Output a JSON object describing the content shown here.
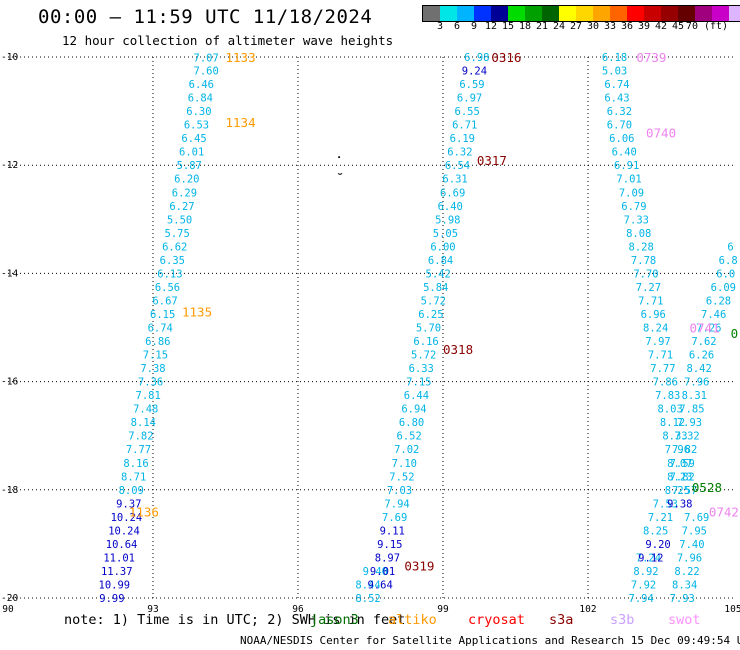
{
  "header": {
    "title": "00:00 – 11:59 UTC 11/18/2024",
    "subtitle": "12 hour collection of altimeter wave heights"
  },
  "colorbar": {
    "colors": [
      "#707070",
      "#00e6e6",
      "#00b4ff",
      "#0032ff",
      "#000096",
      "#00dc00",
      "#00a000",
      "#006400",
      "#ffff00",
      "#ffd700",
      "#ffa500",
      "#ff6400",
      "#ff0000",
      "#c80000",
      "#960000",
      "#640000",
      "#a0007d",
      "#c800c8",
      "#dcb4ff",
      "#ffa0ff",
      "#000000"
    ],
    "labels": [
      "3",
      "6",
      "9",
      "12",
      "15",
      "18",
      "21",
      "24",
      "27",
      "30",
      "33",
      "36",
      "39",
      "42",
      "45",
      "70 (ft)"
    ]
  },
  "map": {
    "x_ticks": [
      "90",
      "93",
      "96",
      "99",
      "102",
      "105"
    ],
    "y_ticks": [
      "-10",
      "-12",
      "-14",
      "-16",
      "-18",
      "-20"
    ],
    "lon_range": [
      90,
      105
    ],
    "lat_range": [
      -20,
      -10
    ],
    "tracks": [
      {
        "color_key": "cyan",
        "points": [
          [
            94.1,
            -10.01,
            "7.07"
          ],
          [
            94.1,
            -10.25,
            "7.60"
          ],
          [
            94.0,
            -10.5,
            "6.46"
          ],
          [
            93.98,
            -10.75,
            "6.84"
          ],
          [
            93.95,
            -11.0,
            "6.30"
          ],
          [
            93.9,
            -11.25,
            "6.53"
          ],
          [
            93.85,
            -11.5,
            "6.45"
          ],
          [
            93.8,
            -11.75,
            "6.01"
          ],
          [
            93.75,
            -12.0,
            "5.87"
          ],
          [
            93.7,
            -12.25,
            "6.20"
          ],
          [
            93.65,
            -12.5,
            "6.29"
          ],
          [
            93.6,
            -12.75,
            "6.27"
          ],
          [
            93.55,
            -13.0,
            "5.50"
          ],
          [
            93.5,
            -13.25,
            "5.75"
          ],
          [
            93.45,
            -13.5,
            "6.62"
          ],
          [
            93.4,
            -13.75,
            "6.35"
          ],
          [
            93.35,
            -14.0,
            "6.13"
          ],
          [
            93.3,
            -14.25,
            "6.56"
          ],
          [
            93.25,
            -14.5,
            "6.67"
          ],
          [
            93.2,
            -14.75,
            "6.15"
          ],
          [
            93.15,
            -15.0,
            "6.74"
          ],
          [
            93.1,
            -15.25,
            "6.86"
          ],
          [
            93.05,
            -15.5,
            "7.15"
          ],
          [
            93.0,
            -15.75,
            "7.38"
          ],
          [
            92.95,
            -16.0,
            "7.36"
          ],
          [
            92.9,
            -16.25,
            "7.81"
          ],
          [
            92.85,
            -16.5,
            "7.48"
          ],
          [
            92.8,
            -16.75,
            "8.14"
          ],
          [
            92.75,
            -17.0,
            "7.82"
          ],
          [
            92.7,
            -17.25,
            "7.77"
          ],
          [
            92.65,
            -17.5,
            "8.16"
          ],
          [
            92.6,
            -17.75,
            "8.71"
          ],
          [
            92.55,
            -18.0,
            "8.09"
          ]
        ]
      },
      {
        "color_key": "blue",
        "points": [
          [
            92.5,
            -18.25,
            "9.37"
          ],
          [
            92.45,
            -18.5,
            "10.24"
          ],
          [
            92.4,
            -18.75,
            "10.24"
          ],
          [
            92.35,
            -19.0,
            "10.64"
          ],
          [
            92.3,
            -19.25,
            "11.01"
          ],
          [
            92.25,
            -19.5,
            "11.37"
          ],
          [
            92.2,
            -19.75,
            "10.99"
          ],
          [
            92.15,
            -20.0,
            "9.99"
          ]
        ]
      },
      {
        "color_key": "cyan",
        "points": [
          [
            99.7,
            -10.0,
            "6.98"
          ],
          [
            99.6,
            -10.5,
            "6.59"
          ],
          [
            99.55,
            -10.75,
            "6.97"
          ],
          [
            99.5,
            -11.0,
            "6.55"
          ],
          [
            99.45,
            -11.25,
            "6.71"
          ],
          [
            99.4,
            -11.5,
            "6.19"
          ],
          [
            99.35,
            -11.75,
            "6.32"
          ],
          [
            99.3,
            -12.0,
            "6.54"
          ],
          [
            99.25,
            -12.25,
            "6.31"
          ],
          [
            99.2,
            -12.5,
            "6.69"
          ],
          [
            99.15,
            -12.75,
            "6.40"
          ],
          [
            99.1,
            -13.0,
            "5.98"
          ],
          [
            99.05,
            -13.25,
            "5.05"
          ],
          [
            99.0,
            -13.5,
            "6.00"
          ],
          [
            98.95,
            -13.75,
            "6.84"
          ],
          [
            98.9,
            -14.0,
            "5.42"
          ],
          [
            98.85,
            -14.25,
            "5.84"
          ],
          [
            98.8,
            -14.5,
            "5.72"
          ],
          [
            98.75,
            -14.75,
            "6.25"
          ],
          [
            98.7,
            -15.0,
            "5.70"
          ],
          [
            98.65,
            -15.25,
            "6.16"
          ],
          [
            98.6,
            -15.5,
            "5.72"
          ],
          [
            98.55,
            -15.75,
            "6.33"
          ],
          [
            98.5,
            -16.0,
            "7.15"
          ],
          [
            98.45,
            -16.25,
            "6.44"
          ],
          [
            98.4,
            -16.5,
            "6.94"
          ],
          [
            98.35,
            -16.75,
            "6.80"
          ],
          [
            98.3,
            -17.0,
            "6.52"
          ],
          [
            98.25,
            -17.25,
            "7.02"
          ],
          [
            98.2,
            -17.5,
            "7.10"
          ],
          [
            98.15,
            -17.75,
            "7.52"
          ],
          [
            98.1,
            -18.0,
            "7.03"
          ],
          [
            98.05,
            -18.25,
            "7.94"
          ],
          [
            98.0,
            -18.5,
            "7.69"
          ],
          [
            97.6,
            -19.5,
            "9.40"
          ],
          [
            97.45,
            -19.75,
            "8.44"
          ],
          [
            97.45,
            -20.0,
            "8.52"
          ]
        ]
      },
      {
        "color_key": "blue",
        "points": [
          [
            99.65,
            -10.25,
            "9.24"
          ],
          [
            97.95,
            -18.75,
            "9.11"
          ],
          [
            97.9,
            -19.0,
            "9.15"
          ],
          [
            97.85,
            -19.25,
            "8.97"
          ],
          [
            97.75,
            -19.5,
            "9.01"
          ],
          [
            97.7,
            -19.75,
            "9.64"
          ]
        ]
      },
      {
        "color_key": "cyan",
        "points": [
          [
            102.55,
            -10.0,
            "6.18"
          ],
          [
            102.55,
            -10.25,
            "5.03"
          ],
          [
            102.6,
            -10.5,
            "6.74"
          ],
          [
            102.6,
            -10.75,
            "6.43"
          ],
          [
            102.65,
            -11.0,
            "6.32"
          ],
          [
            102.65,
            -11.25,
            "6.70"
          ],
          [
            102.7,
            -11.5,
            "6.06"
          ],
          [
            102.75,
            -11.75,
            "6.40"
          ],
          [
            102.8,
            -12.0,
            "6.91"
          ],
          [
            102.85,
            -12.25,
            "7.01"
          ],
          [
            102.9,
            -12.5,
            "7.09"
          ],
          [
            102.95,
            -12.75,
            "6.79"
          ],
          [
            103.0,
            -13.0,
            "7.33"
          ],
          [
            103.05,
            -13.25,
            "8.08"
          ],
          [
            103.1,
            -13.5,
            "8.28"
          ],
          [
            103.15,
            -13.75,
            "7.78"
          ],
          [
            103.2,
            -14.0,
            "7.70"
          ],
          [
            103.25,
            -14.25,
            "7.27"
          ],
          [
            103.3,
            -14.5,
            "7.71"
          ],
          [
            103.35,
            -14.75,
            "6.96"
          ],
          [
            103.4,
            -15.0,
            "8.24"
          ],
          [
            103.45,
            -15.25,
            "7.97"
          ],
          [
            103.5,
            -15.5,
            "7.71"
          ],
          [
            103.55,
            -15.75,
            "7.77"
          ],
          [
            103.6,
            -16.0,
            "7.86"
          ],
          [
            103.65,
            -16.25,
            "7.83"
          ],
          [
            103.7,
            -16.5,
            "8.03"
          ],
          [
            103.75,
            -16.75,
            "8.12"
          ],
          [
            103.8,
            -17.0,
            "8.33"
          ],
          [
            103.85,
            -17.25,
            "7.96"
          ],
          [
            103.9,
            -17.5,
            "8.07"
          ],
          [
            103.95,
            -17.75,
            "7.82"
          ],
          [
            104.0,
            -18.0,
            "7.57"
          ],
          [
            103.6,
            -18.25,
            "7.53"
          ],
          [
            103.5,
            -18.5,
            "7.21"
          ],
          [
            103.4,
            -18.75,
            "8.25"
          ],
          [
            103.25,
            -19.25,
            "7.24"
          ],
          [
            103.2,
            -19.5,
            "8.92"
          ],
          [
            103.15,
            -19.75,
            "7.92"
          ],
          [
            103.1,
            -20.0,
            "7.94"
          ]
        ]
      },
      {
        "color_key": "blue",
        "points": [
          [
            103.9,
            -18.25,
            "9.38"
          ],
          [
            103.45,
            -19.0,
            "9.20"
          ],
          [
            103.3,
            -19.25,
            "9.12"
          ]
        ]
      },
      {
        "color_key": "cyan",
        "points": [
          [
            104.95,
            -13.5,
            "6"
          ],
          [
            104.9,
            -13.75,
            "6.8"
          ],
          [
            104.85,
            -14.0,
            "6.0"
          ],
          [
            104.8,
            -14.25,
            "6.09"
          ],
          [
            104.7,
            -14.5,
            "6.28"
          ],
          [
            104.6,
            -14.75,
            "7.46"
          ],
          [
            104.5,
            -15.0,
            "7.26"
          ],
          [
            104.4,
            -15.25,
            "7.62"
          ],
          [
            104.35,
            -15.5,
            "6.26"
          ],
          [
            104.3,
            -15.75,
            "8.42"
          ],
          [
            104.25,
            -16.0,
            "7.96"
          ],
          [
            104.2,
            -16.25,
            "8.31"
          ],
          [
            104.15,
            -16.5,
            "7.85"
          ],
          [
            104.1,
            -16.75,
            "7.93"
          ],
          [
            104.05,
            -17.0,
            "7.32"
          ],
          [
            104.0,
            -17.25,
            "7.82"
          ],
          [
            103.95,
            -17.5,
            "7.59"
          ],
          [
            103.9,
            -17.75,
            "8.23"
          ],
          [
            103.85,
            -18.0,
            "8.25"
          ],
          [
            104.25,
            -18.5,
            "7.69"
          ],
          [
            104.2,
            -18.75,
            "7.95"
          ],
          [
            104.15,
            -19.0,
            "7.40"
          ],
          [
            104.1,
            -19.25,
            "7.96"
          ],
          [
            104.05,
            -19.5,
            "8.22"
          ],
          [
            104.0,
            -19.75,
            "8.34"
          ],
          [
            103.95,
            -20.0,
            "7.93"
          ]
        ]
      }
    ],
    "pass_labels": [
      {
        "text": "1133",
        "lon": 94.5,
        "lat": -10.0,
        "color_key": "orange"
      },
      {
        "text": "1134",
        "lon": 94.5,
        "lat": -11.2,
        "color_key": "orange"
      },
      {
        "text": "1135",
        "lon": 93.6,
        "lat": -14.7,
        "color_key": "orange"
      },
      {
        "text": "1136",
        "lon": 92.5,
        "lat": -18.4,
        "color_key": "orange"
      },
      {
        "text": "0316",
        "lon": 100.0,
        "lat": -10.0,
        "color_key": "darkred"
      },
      {
        "text": "0317",
        "lon": 99.7,
        "lat": -11.9,
        "color_key": "darkred"
      },
      {
        "text": "0318",
        "lon": 99.0,
        "lat": -15.4,
        "color_key": "darkred"
      },
      {
        "text": "0319",
        "lon": 98.2,
        "lat": -19.4,
        "color_key": "darkred"
      },
      {
        "text": "0739",
        "lon": 103.0,
        "lat": -10.0,
        "color_key": "pink"
      },
      {
        "text": "0740",
        "lon": 103.2,
        "lat": -11.4,
        "color_key": "pink"
      },
      {
        "text": "0741",
        "lon": 104.1,
        "lat": -15.0,
        "color_key": "pink"
      },
      {
        "text": "0742",
        "lon": 104.5,
        "lat": -18.4,
        "color_key": "pink"
      },
      {
        "text": "0528",
        "lon": 104.15,
        "lat": -17.95,
        "color_key": "green"
      },
      {
        "text": "0",
        "lon": 104.95,
        "lat": -15.1,
        "color_key": "green"
      }
    ],
    "palette": {
      "cyan": "#00b4e6",
      "blue": "#0000c8",
      "orange": "#ff9900",
      "darkred": "#8b0000",
      "pink": "#ee82ee",
      "green": "#008000"
    }
  },
  "footer": {
    "note": "note: 1) Time is in UTC; 2) SWH is in feet",
    "satellites": [
      {
        "name": "jason3",
        "color": "#007000"
      },
      {
        "name": "altiko",
        "color": "#ff9900"
      },
      {
        "name": "cryosat",
        "color": "#ff0000"
      },
      {
        "name": "s3a",
        "color": "#8b0000"
      },
      {
        "name": "s3b",
        "color": "#c8a0ff"
      },
      {
        "name": "swot",
        "color": "#ff90ff"
      }
    ],
    "credit": "NOAA/NESDIS Center for Satellite Applications and Research   15 Dec 09:49:54 UTC 2024"
  }
}
